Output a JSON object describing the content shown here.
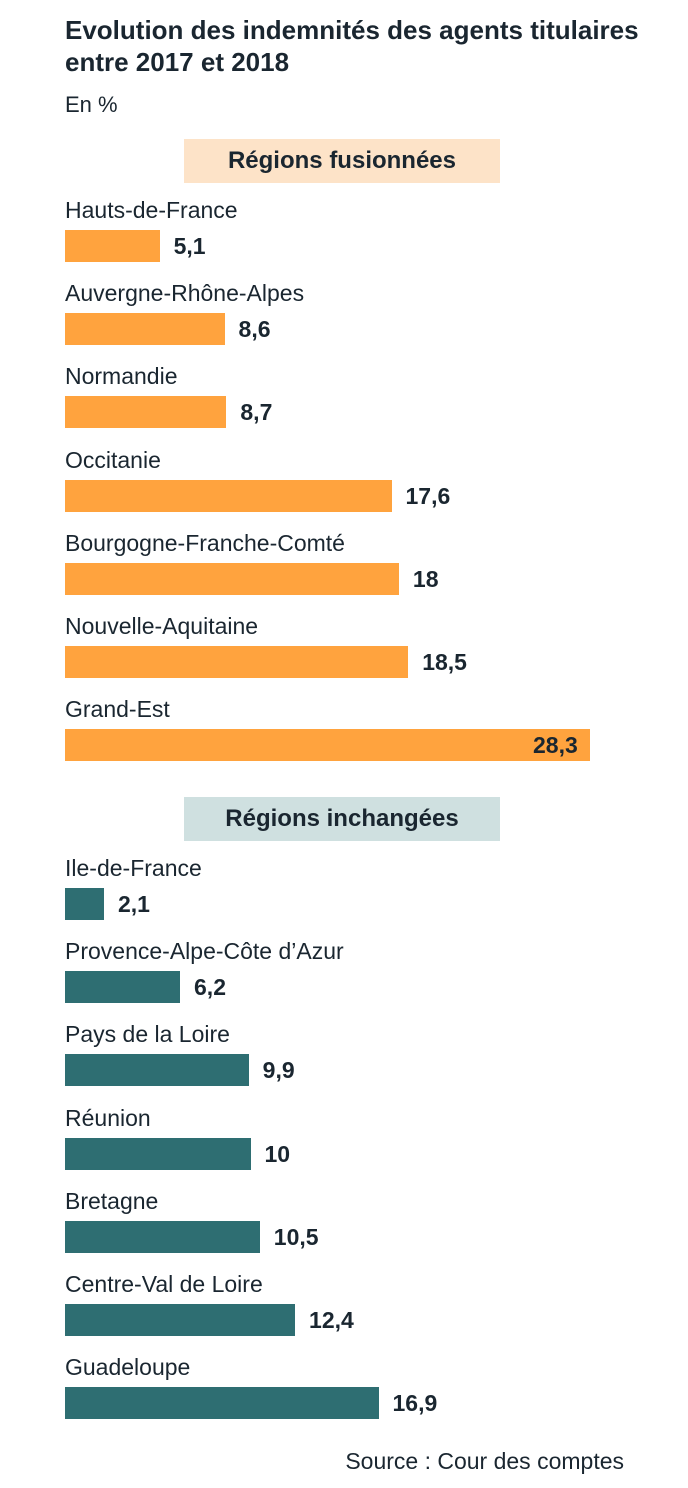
{
  "title": "Evolution des indemnités des agents titulaires entre 2017 et 2018",
  "unit": "En %",
  "source": "Source : Cour des comptes",
  "colors": {
    "merged_bar": "#ffa33e",
    "merged_header_bg": "#fde3c8",
    "unchanged_bar": "#2e6e72",
    "unchanged_header_bg": "#cfe0e0",
    "text": "#1a2630"
  },
  "chart_data": {
    "type": "bar",
    "orientation": "horizontal",
    "xlim": [
      0,
      28.3
    ],
    "groups": [
      {
        "name": "Régions fusionnées",
        "categories": [
          "Hauts-de-France",
          "Auvergne-Rhône-Alpes",
          "Normandie",
          "Occitanie",
          "Bourgogne-Franche-Comté",
          "Nouvelle-Aquitaine",
          "Grand-Est"
        ],
        "values": [
          5.1,
          8.6,
          8.7,
          17.6,
          18,
          18.5,
          28.3
        ],
        "labels": [
          "5,1",
          "8,6",
          "8,7",
          "17,6",
          "18",
          "18,5",
          "28,3"
        ]
      },
      {
        "name": "Régions inchangées",
        "categories": [
          "Ile-de-France",
          "Provence-Alpe-Côte d’Azur",
          "Pays de la Loire",
          "Réunion",
          "Bretagne",
          "Centre-Val de Loire",
          "Guadeloupe"
        ],
        "values": [
          2.1,
          6.2,
          9.9,
          10,
          10.5,
          12.4,
          16.9
        ],
        "labels": [
          "2,1",
          "6,2",
          "9,9",
          "10",
          "10,5",
          "12,4",
          "16,9"
        ]
      }
    ]
  }
}
